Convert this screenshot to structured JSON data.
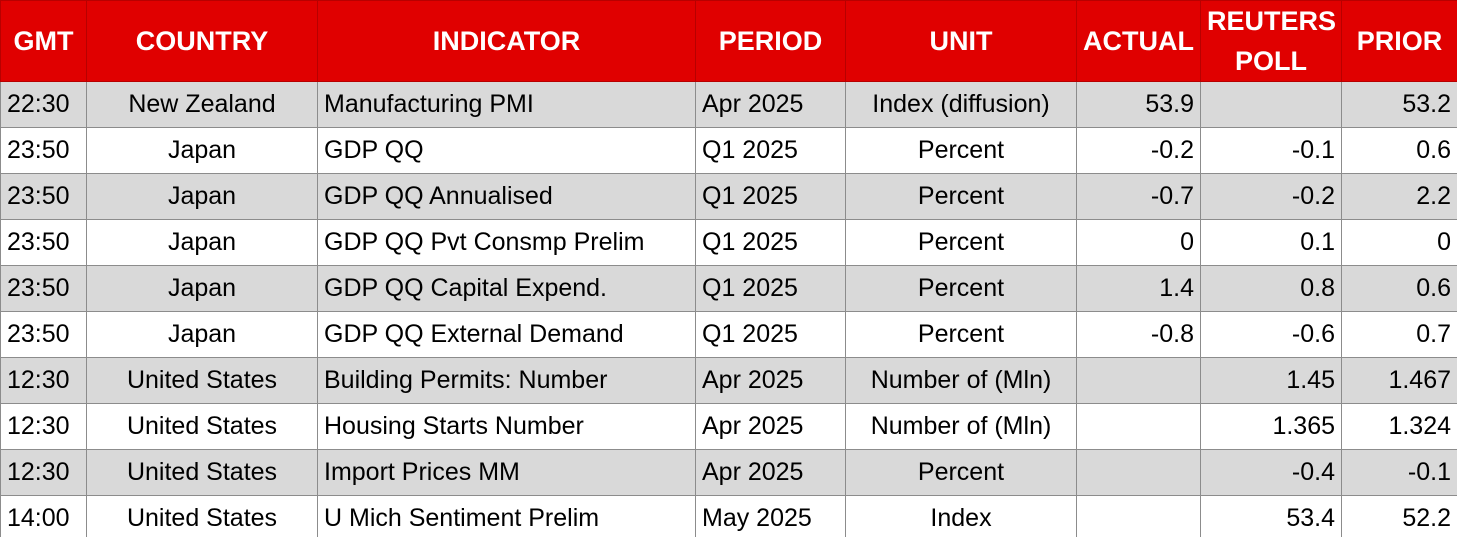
{
  "headers": {
    "gmt": "GMT",
    "country": "COUNTRY",
    "indicator": "INDICATOR",
    "period": "PERIOD",
    "unit": "UNIT",
    "actual": "ACTUAL",
    "poll": "REUTERS POLL",
    "prior": "PRIOR"
  },
  "colors": {
    "header_bg": "#e00000",
    "header_text": "#ffffff",
    "shaded_row": "#d9d9d9"
  },
  "rows": [
    {
      "gmt": "22:30",
      "country": "New Zealand",
      "indicator": "Manufacturing PMI",
      "period": "Apr 2025",
      "unit": "Index (diffusion)",
      "actual": "53.9",
      "poll": "",
      "prior": "53.2"
    },
    {
      "gmt": "23:50",
      "country": "Japan",
      "indicator": "GDP QQ",
      "period": "Q1 2025",
      "unit": "Percent",
      "actual": "-0.2",
      "poll": "-0.1",
      "prior": "0.6"
    },
    {
      "gmt": "23:50",
      "country": "Japan",
      "indicator": "GDP QQ Annualised",
      "period": "Q1 2025",
      "unit": "Percent",
      "actual": "-0.7",
      "poll": "-0.2",
      "prior": "2.2"
    },
    {
      "gmt": "23:50",
      "country": "Japan",
      "indicator": "GDP QQ Pvt Consmp Prelim",
      "period": "Q1 2025",
      "unit": "Percent",
      "actual": "0",
      "poll": "0.1",
      "prior": "0"
    },
    {
      "gmt": "23:50",
      "country": "Japan",
      "indicator": "GDP QQ Capital Expend.",
      "period": "Q1 2025",
      "unit": "Percent",
      "actual": "1.4",
      "poll": "0.8",
      "prior": "0.6"
    },
    {
      "gmt": "23:50",
      "country": "Japan",
      "indicator": "GDP QQ External Demand",
      "period": "Q1 2025",
      "unit": "Percent",
      "actual": "-0.8",
      "poll": "-0.6",
      "prior": "0.7"
    },
    {
      "gmt": "12:30",
      "country": "United States",
      "indicator": "Building Permits: Number",
      "period": "Apr 2025",
      "unit": "Number of (Mln)",
      "actual": "",
      "poll": "1.45",
      "prior": "1.467"
    },
    {
      "gmt": "12:30",
      "country": "United States",
      "indicator": "Housing Starts Number",
      "period": "Apr 2025",
      "unit": "Number of (Mln)",
      "actual": "",
      "poll": "1.365",
      "prior": "1.324"
    },
    {
      "gmt": "12:30",
      "country": "United States",
      "indicator": "Import Prices MM",
      "period": "Apr 2025",
      "unit": "Percent",
      "actual": "",
      "poll": "-0.4",
      "prior": "-0.1"
    },
    {
      "gmt": "14:00",
      "country": "United States",
      "indicator": "U Mich Sentiment Prelim",
      "period": "May 2025",
      "unit": "Index",
      "actual": "",
      "poll": "53.4",
      "prior": "52.2"
    }
  ]
}
